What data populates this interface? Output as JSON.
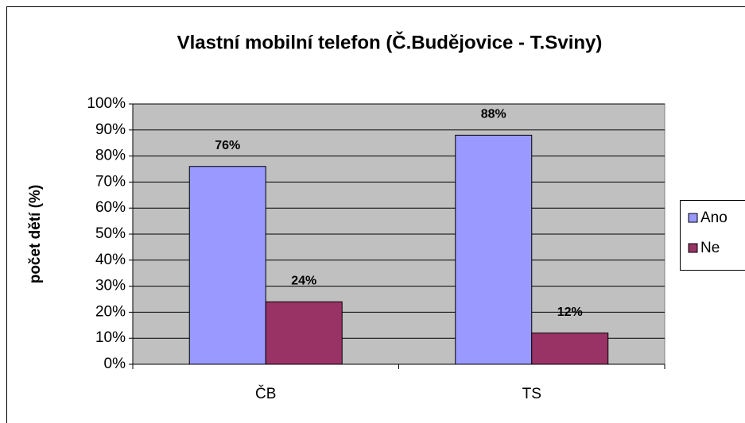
{
  "chart_data": {
    "type": "bar",
    "title": "Vlastní mobilní telefon (Č.Budějovice - T.Sviny)",
    "ylabel": "počet dětí (%)",
    "categories": [
      "ČB",
      "TS"
    ],
    "series": [
      {
        "name": "Ano",
        "color": "#9999ff",
        "values": [
          76,
          88
        ],
        "value_labels": [
          "76%",
          "88%"
        ]
      },
      {
        "name": "Ne",
        "color": "#993366",
        "values": [
          24,
          12
        ],
        "value_labels": [
          "24%",
          "12%"
        ]
      }
    ],
    "ylim": [
      0,
      100
    ],
    "yticks": [
      {
        "value": 0,
        "label": "0%"
      },
      {
        "value": 10,
        "label": "10%"
      },
      {
        "value": 20,
        "label": "20%"
      },
      {
        "value": 30,
        "label": "30%"
      },
      {
        "value": 40,
        "label": "40%"
      },
      {
        "value": 50,
        "label": "50%"
      },
      {
        "value": 60,
        "label": "60%"
      },
      {
        "value": 70,
        "label": "70%"
      },
      {
        "value": 80,
        "label": "80%"
      },
      {
        "value": 90,
        "label": "90%"
      },
      {
        "value": 100,
        "label": "100%"
      }
    ],
    "grid": true,
    "legend": "right",
    "plot_background": "#c0c0c0"
  }
}
